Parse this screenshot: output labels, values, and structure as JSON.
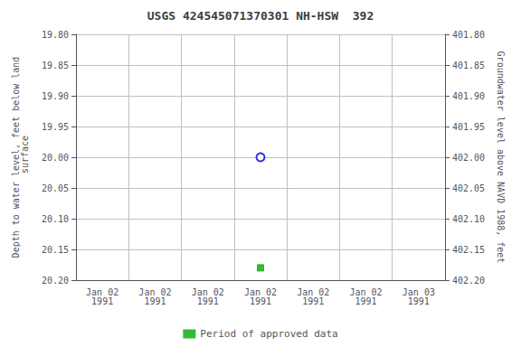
{
  "chart_data": {
    "type": "scatter",
    "title": "USGS 424545071370301 NH-HSW  392",
    "ylabel": "Depth to water level, feet below land\n surface",
    "y2label": "Groundwater level above NAVD 1988, feet",
    "categories": [
      "Jan 02\n1991",
      "Jan 02\n1991",
      "Jan 02\n1991",
      "Jan 02\n1991",
      "Jan 02\n1991",
      "Jan 02\n1991",
      "Jan 03\n1991"
    ],
    "series": [
      {
        "color": "#0000cc",
        "marker": "circle_open",
        "values": [
          null,
          null,
          null,
          20.0,
          null,
          null,
          null
        ]
      },
      {
        "name": "Period of approved data",
        "color": "#00aa00",
        "marker": "square",
        "values": [
          null,
          null,
          null,
          20.18,
          null,
          null,
          null
        ]
      }
    ],
    "ylim": [
      19.8,
      20.2
    ],
    "yticks": [
      {
        "value": 19.8,
        "label": "19.80"
      },
      {
        "value": 19.85,
        "label": "19.85"
      },
      {
        "value": 19.9,
        "label": "19.90"
      },
      {
        "value": 19.95,
        "label": "19.95"
      },
      {
        "value": 20.0,
        "label": "20.00"
      },
      {
        "value": 20.05,
        "label": "20.05"
      },
      {
        "value": 20.1,
        "label": "20.10"
      },
      {
        "value": 20.15,
        "label": "20.15"
      },
      {
        "value": 20.2,
        "label": "20.20"
      }
    ],
    "y2lim": [
      401.8,
      402.2
    ],
    "y2ticks": [
      {
        "value": 401.8,
        "label": "401.80"
      },
      {
        "value": 401.85,
        "label": "401.85"
      },
      {
        "value": 401.9,
        "label": "401.90"
      },
      {
        "value": 401.95,
        "label": "401.95"
      },
      {
        "value": 402.0,
        "label": "402.00"
      },
      {
        "value": 402.05,
        "label": "402.05"
      },
      {
        "value": 402.1,
        "label": "402.10"
      },
      {
        "value": 402.15,
        "label": "402.15"
      },
      {
        "value": 402.2,
        "label": "402.20"
      }
    ],
    "grid": true,
    "legend": "bottom"
  }
}
